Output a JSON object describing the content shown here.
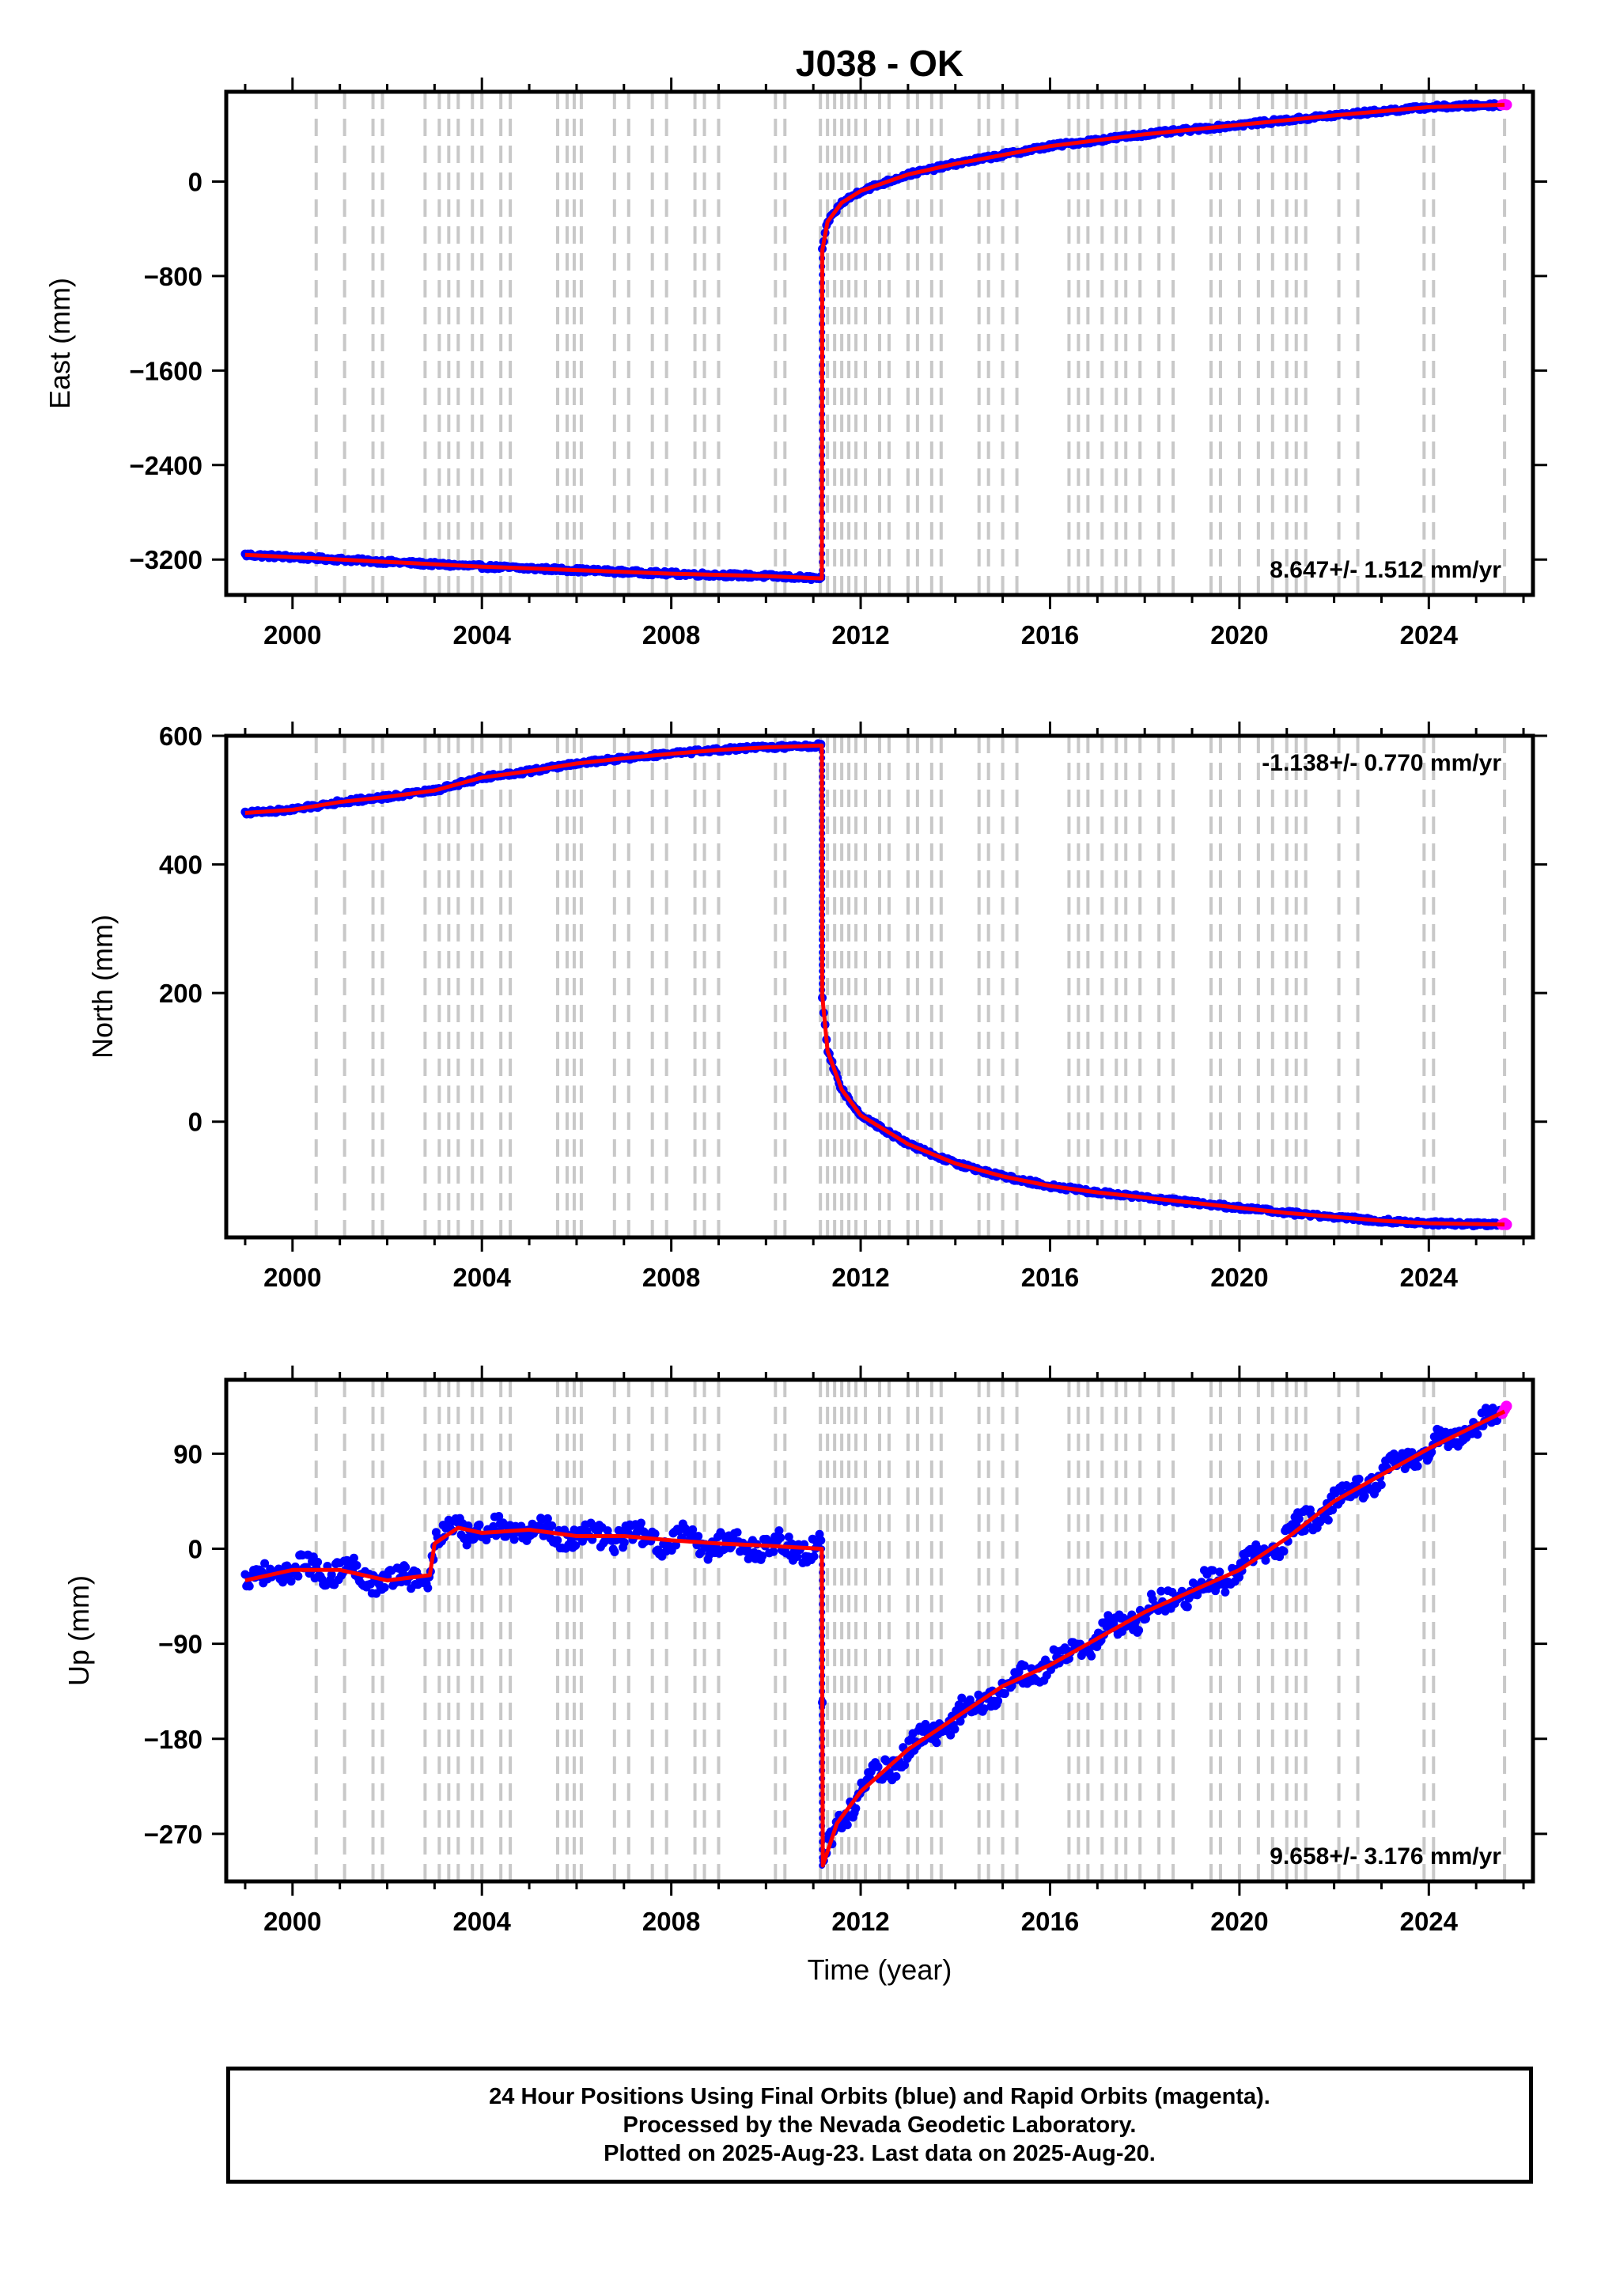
{
  "figure": {
    "title": "J038 - OK",
    "footer_lines": [
      "24 Hour Positions Using Final Orbits (blue) and Rapid Orbits (magenta).",
      "Processed by the Nevada Geodetic Laboratory.",
      "Plotted on 2025-Aug-23. Last data on 2025-Aug-20."
    ]
  },
  "chart_data": [
    {
      "type": "scatter",
      "title": "J038 - OK",
      "xlabel": "",
      "ylabel": "East (mm)",
      "xlim": [
        1998.6,
        2026.2
      ],
      "ylim": [
        -3500,
        760
      ],
      "xticks": [
        2000,
        2004,
        2008,
        2012,
        2016,
        2020,
        2024
      ],
      "yticks": [
        0,
        -800,
        -1600,
        -2400,
        -3200
      ],
      "ytick_labels": [
        "0",
        "−800",
        "−1600",
        "−2400",
        "−3200"
      ],
      "velocity_label": "8.647+/- 1.512 mm/yr",
      "velocity_corner": "bottom-right",
      "series": [
        {
          "name": "Final Orbits",
          "color": "#0000ff",
          "x": [
            1999.0,
            2000.0,
            2002.0,
            2004.0,
            2006.0,
            2008.0,
            2010.0,
            2011.18,
            2011.19,
            2011.3,
            2011.6,
            2012.0,
            2013.0,
            2014.0,
            2016.0,
            2018.0,
            2020.0,
            2022.0,
            2024.0,
            2025.5
          ],
          "y": [
            -3160,
            -3180,
            -3220,
            -3260,
            -3290,
            -3320,
            -3340,
            -3360,
            -580,
            -340,
            -180,
            -80,
            60,
            150,
            300,
            400,
            480,
            560,
            630,
            650
          ]
        },
        {
          "name": "Rapid Orbits",
          "color": "#ff00ff",
          "x": [
            2025.55,
            2025.6,
            2025.64
          ],
          "y": [
            650,
            652,
            650
          ]
        },
        {
          "name": "Filtered",
          "color": "#ff0000",
          "x": [
            1999.0,
            2000.0,
            2002.0,
            2004.0,
            2006.0,
            2008.0,
            2010.0,
            2011.18,
            2011.19,
            2011.3,
            2011.6,
            2012.0,
            2013.0,
            2014.0,
            2016.0,
            2018.0,
            2020.0,
            2022.0,
            2024.0,
            2025.6
          ],
          "y": [
            -3160,
            -3180,
            -3220,
            -3260,
            -3290,
            -3320,
            -3340,
            -3360,
            -580,
            -340,
            -180,
            -80,
            60,
            150,
            300,
            400,
            480,
            560,
            630,
            650
          ]
        }
      ]
    },
    {
      "type": "scatter",
      "xlabel": "",
      "ylabel": "North (mm)",
      "xlim": [
        1998.6,
        2026.2
      ],
      "ylim": [
        -180,
        600
      ],
      "xticks": [
        2000,
        2004,
        2008,
        2012,
        2016,
        2020,
        2024
      ],
      "yticks": [
        600,
        400,
        200,
        0
      ],
      "ytick_labels": [
        "600",
        "400",
        "200",
        "0"
      ],
      "velocity_label": "-1.138+/- 0.770 mm/yr",
      "velocity_corner": "top-right",
      "series": [
        {
          "name": "Final Orbits",
          "color": "#0000ff",
          "x": [
            1999.0,
            2000.0,
            2001.0,
            2002.0,
            2003.0,
            2004.0,
            2005.0,
            2006.0,
            2007.0,
            2008.0,
            2009.0,
            2010.0,
            2011.18,
            2011.19,
            2011.3,
            2011.6,
            2012.0,
            2013.0,
            2014.0,
            2015.0,
            2016.0,
            2017.0,
            2018.0,
            2019.0,
            2020.0,
            2021.0,
            2022.0,
            2023.0,
            2024.0,
            2025.5
          ],
          "y": [
            480,
            485,
            497,
            505,
            515,
            535,
            545,
            557,
            565,
            572,
            578,
            582,
            585,
            195,
            110,
            50,
            10,
            -35,
            -65,
            -85,
            -100,
            -110,
            -118,
            -126,
            -134,
            -142,
            -148,
            -154,
            -158,
            -160
          ]
        },
        {
          "name": "Rapid Orbits",
          "color": "#ff00ff",
          "x": [
            2025.55,
            2025.6,
            2025.64
          ],
          "y": [
            -160,
            -158,
            -160
          ]
        },
        {
          "name": "Filtered",
          "color": "#ff0000",
          "x": [
            1999.0,
            2000.0,
            2001.0,
            2002.0,
            2003.0,
            2004.0,
            2005.0,
            2006.0,
            2007.0,
            2008.0,
            2009.0,
            2010.0,
            2011.18,
            2011.19,
            2011.3,
            2011.6,
            2012.0,
            2013.0,
            2014.0,
            2015.0,
            2016.0,
            2017.0,
            2018.0,
            2019.0,
            2020.0,
            2021.0,
            2022.0,
            2023.0,
            2024.0,
            2025.6
          ],
          "y": [
            480,
            485,
            497,
            505,
            515,
            535,
            545,
            557,
            565,
            572,
            578,
            582,
            585,
            195,
            110,
            50,
            10,
            -35,
            -65,
            -85,
            -100,
            -110,
            -118,
            -126,
            -134,
            -142,
            -148,
            -154,
            -158,
            -160
          ]
        }
      ]
    },
    {
      "type": "scatter",
      "xlabel": "Time (year)",
      "ylabel": "Up (mm)",
      "xlim": [
        1998.6,
        2026.2
      ],
      "ylim": [
        -315,
        160
      ],
      "xticks": [
        2000,
        2004,
        2008,
        2012,
        2016,
        2020,
        2024
      ],
      "yticks": [
        90,
        0,
        -90,
        -180,
        -270
      ],
      "ytick_labels": [
        "90",
        "0",
        "−90",
        "−180",
        "−270"
      ],
      "velocity_label": "9.658+/- 3.176 mm/yr",
      "velocity_corner": "bottom-right",
      "series": [
        {
          "name": "Final Orbits",
          "color": "#0000ff",
          "x": [
            1999.0,
            2000.0,
            2001.0,
            2002.0,
            2002.9,
            2003.0,
            2003.5,
            2004.0,
            2005.0,
            2006.0,
            2007.0,
            2008.0,
            2009.0,
            2010.0,
            2011.18,
            2011.2,
            2011.5,
            2012.0,
            2013.0,
            2014.0,
            2015.0,
            2016.0,
            2017.0,
            2018.0,
            2019.0,
            2020.0,
            2021.0,
            2022.0,
            2023.0,
            2024.0,
            2025.5
          ],
          "y": [
            -30,
            -20,
            -20,
            -30,
            -25,
            5,
            20,
            15,
            18,
            12,
            12,
            8,
            5,
            3,
            0,
            -300,
            -260,
            -230,
            -190,
            -160,
            -130,
            -110,
            -85,
            -60,
            -40,
            -20,
            10,
            45,
            70,
            95,
            125
          ]
        },
        {
          "name": "Rapid Orbits",
          "color": "#ff00ff",
          "x": [
            2025.55,
            2025.6,
            2025.64
          ],
          "y": [
            128,
            132,
            135
          ]
        },
        {
          "name": "Filtered",
          "color": "#ff0000",
          "x": [
            1999.0,
            2000.0,
            2001.0,
            2002.0,
            2002.9,
            2003.0,
            2003.5,
            2004.0,
            2005.0,
            2006.0,
            2007.0,
            2008.0,
            2009.0,
            2010.0,
            2011.18,
            2011.2,
            2011.5,
            2012.0,
            2013.0,
            2014.0,
            2015.0,
            2016.0,
            2017.0,
            2018.0,
            2019.0,
            2020.0,
            2021.0,
            2022.0,
            2023.0,
            2024.0,
            2025.6
          ],
          "y": [
            -30,
            -20,
            -20,
            -30,
            -25,
            5,
            20,
            15,
            18,
            12,
            12,
            8,
            5,
            3,
            0,
            -300,
            -260,
            -230,
            -190,
            -160,
            -130,
            -110,
            -85,
            -60,
            -40,
            -20,
            10,
            45,
            70,
            95,
            130
          ]
        }
      ]
    }
  ],
  "equipment_change_epochs": [
    2000.5,
    2001.1,
    2001.7,
    2001.9,
    2002.8,
    2003.1,
    2003.3,
    2003.5,
    2003.8,
    2004.0,
    2004.4,
    2004.6,
    2005.6,
    2005.8,
    2005.95,
    2006.1,
    2006.8,
    2007.1,
    2007.6,
    2007.9,
    2008.5,
    2008.7,
    2009.0,
    2010.2,
    2010.4,
    2011.15,
    2011.3,
    2011.45,
    2011.6,
    2011.75,
    2011.9,
    2012.1,
    2012.4,
    2012.6,
    2013.0,
    2013.2,
    2013.5,
    2013.7,
    2014.5,
    2014.7,
    2015.0,
    2015.3,
    2016.4,
    2016.6,
    2016.8,
    2017.1,
    2017.4,
    2017.6,
    2017.9,
    2018.3,
    2018.6,
    2019.4,
    2019.6,
    2020.0,
    2020.4,
    2020.7,
    2021.0,
    2021.2,
    2021.4,
    2022.1,
    2022.5,
    2023.9,
    2024.1,
    2025.6
  ]
}
